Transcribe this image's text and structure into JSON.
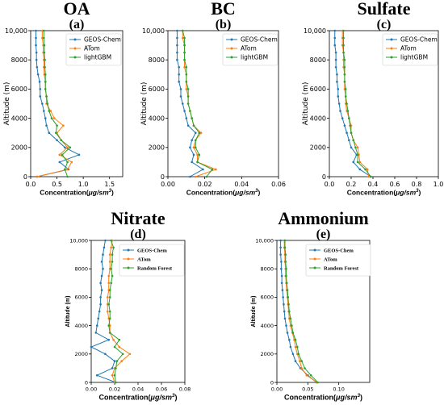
{
  "chart_data": [
    {
      "type": "line",
      "title": "OA",
      "panel_label": "(a)",
      "xlabel": "Concentration(",
      "xlabel_unit": "μg/sm",
      "xlabel_exp": "3",
      "xlabel_close": ")",
      "ylabel": "Altitude (m)",
      "xlim": [
        0,
        1.75
      ],
      "ylim": [
        0,
        10000
      ],
      "xticks": [
        0,
        0.5,
        1.0,
        1.5
      ],
      "xtick_labels": [
        "0.0",
        "0.5",
        "1.0",
        "1.5"
      ],
      "yticks": [
        0,
        2000,
        4000,
        6000,
        8000,
        10000
      ],
      "ytick_labels": [
        "0",
        "2000",
        "4000",
        "6000",
        "8000",
        "10,000"
      ],
      "legend_placement": "top-right",
      "altitudes": [
        0,
        500,
        1000,
        1500,
        2000,
        2500,
        3000,
        3500,
        4000,
        4500,
        5000,
        5500,
        6000,
        6500,
        7000,
        7500,
        8000,
        8500,
        9000,
        9500,
        10000
      ],
      "series": [
        {
          "name": "GEOS-Chem",
          "color": "#1f77b4",
          "values": [
            0.12,
            0.72,
            0.55,
            0.92,
            0.65,
            0.5,
            0.35,
            0.3,
            0.28,
            0.25,
            0.22,
            0.18,
            0.18,
            0.17,
            0.14,
            0.12,
            0.11,
            0.11,
            0.1,
            0.1,
            0.1
          ]
        },
        {
          "name": "ATom",
          "color": "#ff7f0e",
          "values": [
            0.12,
            0.7,
            0.78,
            0.55,
            0.7,
            0.58,
            0.5,
            0.62,
            0.45,
            0.38,
            0.3,
            0.3,
            0.28,
            0.28,
            0.26,
            0.25,
            0.25,
            0.24,
            0.24,
            0.22,
            0.22
          ]
        },
        {
          "name": "lightGBM",
          "color": "#2ca02c",
          "values": [
            0.7,
            0.65,
            0.7,
            0.6,
            0.75,
            0.58,
            0.48,
            0.5,
            0.4,
            0.35,
            0.32,
            0.3,
            0.28,
            0.28,
            0.28,
            0.27,
            0.27,
            0.26,
            0.26,
            0.25,
            0.25
          ]
        }
      ]
    },
    {
      "type": "line",
      "title": "BC",
      "panel_label": "(b)",
      "xlabel": "Concentration(",
      "xlabel_unit": "μg/sm",
      "xlabel_exp": "3",
      "xlabel_close": ")",
      "ylabel": "Altitude (m)",
      "xlim": [
        0,
        0.06
      ],
      "ylim": [
        0,
        10000
      ],
      "xticks": [
        0,
        0.02,
        0.04,
        0.06
      ],
      "xtick_labels": [
        "0.00",
        "0.02",
        "0.04",
        "0.06"
      ],
      "yticks": [
        0,
        2000,
        4000,
        6000,
        8000,
        10000
      ],
      "ytick_labels": [
        "0",
        "2000",
        "4000",
        "6000",
        "8000",
        "10,000"
      ],
      "legend_placement": "top-right",
      "altitudes": [
        0,
        500,
        1000,
        1500,
        2000,
        2500,
        3000,
        3500,
        4000,
        4500,
        5000,
        5500,
        6000,
        6500,
        7000,
        7500,
        8000,
        8500,
        9000,
        9500,
        10000
      ],
      "series": [
        {
          "name": "GEOS-Chem",
          "color": "#1f77b4",
          "values": [
            0.012,
            0.019,
            0.013,
            0.014,
            0.012,
            0.013,
            0.015,
            0.011,
            0.01,
            0.009,
            0.008,
            0.007,
            0.007,
            0.006,
            0.006,
            0.006,
            0.005,
            0.005,
            0.005,
            0.005,
            0.005
          ]
        },
        {
          "name": "ATom",
          "color": "#ff7f0e",
          "values": [
            0.015,
            0.026,
            0.016,
            0.016,
            0.014,
            0.015,
            0.018,
            0.014,
            0.013,
            0.012,
            0.011,
            0.011,
            0.01,
            0.01,
            0.01,
            0.009,
            0.009,
            0.009,
            0.009,
            0.008,
            0.008
          ]
        },
        {
          "name": "lightGBM",
          "color": "#2ca02c",
          "values": [
            0.021,
            0.024,
            0.016,
            0.017,
            0.015,
            0.015,
            0.017,
            0.014,
            0.013,
            0.012,
            0.011,
            0.011,
            0.011,
            0.01,
            0.01,
            0.01,
            0.009,
            0.009,
            0.009,
            0.009,
            0.008
          ]
        }
      ]
    },
    {
      "type": "line",
      "title": "Sulfate",
      "panel_label": "(c)",
      "xlabel": "Concentration(",
      "xlabel_unit": "μg/sm",
      "xlabel_exp": "3",
      "xlabel_close": ")",
      "ylabel": "Altitude (m)",
      "xlim": [
        0,
        1.0
      ],
      "ylim": [
        0,
        10000
      ],
      "xticks": [
        0,
        0.2,
        0.4,
        0.6,
        0.8,
        1.0
      ],
      "xtick_labels": [
        "0.0",
        "0.2",
        "0.4",
        "0.6",
        "0.8",
        "1.0"
      ],
      "yticks": [
        0,
        2000,
        4000,
        6000,
        8000,
        10000
      ],
      "ytick_labels": [
        "0",
        "2000",
        "4000",
        "6000",
        "8000",
        "10,000"
      ],
      "legend_placement": "top-right",
      "altitudes": [
        0,
        500,
        1000,
        1500,
        2000,
        2500,
        3000,
        3500,
        4000,
        4500,
        5000,
        5500,
        6000,
        6500,
        7000,
        7500,
        8000,
        8500,
        9000,
        9500,
        10000
      ],
      "series": [
        {
          "name": "GEOS-Chem",
          "color": "#1f77b4",
          "values": [
            0.38,
            0.28,
            0.22,
            0.25,
            0.2,
            0.18,
            0.16,
            0.14,
            0.12,
            0.1,
            0.09,
            0.08,
            0.08,
            0.07,
            0.07,
            0.06,
            0.06,
            0.06,
            0.05,
            0.05,
            0.05
          ]
        },
        {
          "name": "ATom",
          "color": "#ff7f0e",
          "values": [
            0.36,
            0.35,
            0.28,
            0.27,
            0.26,
            0.22,
            0.2,
            0.2,
            0.18,
            0.16,
            0.15,
            0.15,
            0.14,
            0.14,
            0.14,
            0.13,
            0.13,
            0.13,
            0.12,
            0.12,
            0.12
          ]
        },
        {
          "name": "lightGBM",
          "color": "#2ca02c",
          "values": [
            0.38,
            0.33,
            0.26,
            0.26,
            0.24,
            0.22,
            0.2,
            0.19,
            0.18,
            0.17,
            0.16,
            0.15,
            0.15,
            0.14,
            0.14,
            0.14,
            0.14,
            0.13,
            0.13,
            0.13,
            0.13
          ]
        }
      ]
    },
    {
      "type": "line",
      "title": "Nitrate",
      "panel_label": "(d)",
      "xlabel": "Concentration(",
      "xlabel_unit": "μg/sm",
      "xlabel_exp": "3",
      "xlabel_close": ")",
      "ylabel": "Altitude (m)",
      "xlim": [
        0,
        0.08
      ],
      "ylim": [
        0,
        10000
      ],
      "xticks": [
        0,
        0.02,
        0.04,
        0.06,
        0.08
      ],
      "xtick_labels": [
        "0.00",
        "0.02",
        "0.04",
        "0.06",
        "0.08"
      ],
      "yticks": [
        0,
        2000,
        4000,
        6000,
        8000,
        10000
      ],
      "ytick_labels": [
        "0",
        "2000",
        "4000",
        "6000",
        "8000",
        "10,000"
      ],
      "legend_placement": "top-right",
      "altitudes": [
        0,
        500,
        1000,
        1500,
        2000,
        2500,
        3000,
        3500,
        4000,
        4500,
        5000,
        5500,
        6000,
        6500,
        7000,
        7500,
        8000,
        8500,
        9000,
        9500,
        10000
      ],
      "series": [
        {
          "name": "GEOS-Chem",
          "color": "#1f77b4",
          "values": [
            0.021,
            0.005,
            0.018,
            0.02,
            0.012,
            0.0,
            0.015,
            0.004,
            0.005,
            0.006,
            0.007,
            0.008,
            0.008,
            0.009,
            0.008,
            0.009,
            0.01,
            0.009,
            0.01,
            0.011,
            0.012
          ]
        },
        {
          "name": "ATom",
          "color": "#ff7f0e",
          "values": [
            0.02,
            0.018,
            0.02,
            0.026,
            0.033,
            0.024,
            0.019,
            0.016,
            0.016,
            0.015,
            0.014,
            0.014,
            0.014,
            0.015,
            0.015,
            0.015,
            0.016,
            0.016,
            0.016,
            0.017,
            0.018
          ]
        },
        {
          "name": "Random Forest",
          "color": "#2ca02c",
          "values": [
            0.021,
            0.02,
            0.021,
            0.022,
            0.027,
            0.02,
            0.024,
            0.016,
            0.015,
            0.016,
            0.016,
            0.015,
            0.016,
            0.016,
            0.017,
            0.018,
            0.017,
            0.018,
            0.018,
            0.019,
            0.017
          ]
        }
      ]
    },
    {
      "type": "line",
      "title": "Ammonium",
      "panel_label": "(e)",
      "xlabel": "Concentration(",
      "xlabel_unit": "μg/sm",
      "xlabel_exp": "3",
      "xlabel_close": ")",
      "ylabel": "Altitude (m)",
      "xlim": [
        0,
        0.15
      ],
      "ylim": [
        0,
        10000
      ],
      "xticks": [
        0,
        0.05,
        0.1
      ],
      "xtick_labels": [
        "0.00",
        "0.05",
        "0.10"
      ],
      "yticks": [
        0,
        2000,
        4000,
        6000,
        8000,
        10000
      ],
      "ytick_labels": [
        "0",
        "2000",
        "4000",
        "6000",
        "8000",
        "10,000"
      ],
      "legend_placement": "top-right",
      "altitudes": [
        0,
        500,
        1000,
        1500,
        2000,
        2500,
        3000,
        3500,
        4000,
        4500,
        5000,
        5500,
        6000,
        6500,
        7000,
        7500,
        8000,
        8500,
        9000,
        9500,
        10000
      ],
      "series": [
        {
          "name": "GEOS-Chem",
          "color": "#1f77b4",
          "values": [
            0.064,
            0.05,
            0.038,
            0.03,
            0.026,
            0.022,
            0.02,
            0.017,
            0.015,
            0.013,
            0.012,
            0.011,
            0.01,
            0.009,
            0.008,
            0.008,
            0.007,
            0.007,
            0.006,
            0.006,
            0.006
          ]
        },
        {
          "name": "ATom",
          "color": "#ff7f0e",
          "values": [
            0.065,
            0.048,
            0.04,
            0.037,
            0.033,
            0.03,
            0.028,
            0.025,
            0.022,
            0.02,
            0.019,
            0.018,
            0.017,
            0.016,
            0.015,
            0.014,
            0.014,
            0.013,
            0.013,
            0.012,
            0.012
          ]
        },
        {
          "name": "Random Forest",
          "color": "#2ca02c",
          "values": [
            0.066,
            0.055,
            0.045,
            0.04,
            0.035,
            0.033,
            0.03,
            0.026,
            0.024,
            0.022,
            0.02,
            0.019,
            0.018,
            0.017,
            0.016,
            0.015,
            0.015,
            0.014,
            0.014,
            0.013,
            0.013
          ]
        }
      ]
    }
  ]
}
